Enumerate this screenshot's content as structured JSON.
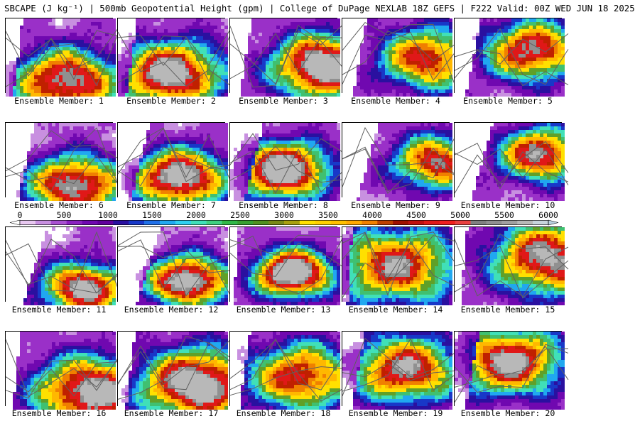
{
  "header": {
    "title": "SBCAPE (J kg⁻¹) | 500mb Geopotential Height (gpm) | College of DuPage NEXLAB 18Z GEFS | F222 Valid: 00Z WED JUN 18 2025"
  },
  "colorbar": {
    "ticks": [
      "0",
      "500",
      "1000",
      "1500",
      "2000",
      "2500",
      "3000",
      "3500",
      "4000",
      "4500",
      "5000",
      "5500",
      "6000"
    ],
    "range": [
      0,
      6000
    ],
    "colors": [
      "#ffffff",
      "#e8c8f0",
      "#c890e0",
      "#a850d0",
      "#8a20c0",
      "#7008b0",
      "#60009c",
      "#2a10a0",
      "#1838c8",
      "#2070e8",
      "#20a8f0",
      "#30d0f0",
      "#40e0b8",
      "#40d080",
      "#30b848",
      "#38a030",
      "#509020",
      "#788818",
      "#a8a010",
      "#ffe000",
      "#ffd000",
      "#ffc000",
      "#ffa800",
      "#f08000",
      "#c04000",
      "#a01000",
      "#c01010",
      "#e01818",
      "#f02020",
      "#e84040",
      "#808080",
      "#909090",
      "#a0a0a0",
      "#b8b8b8",
      "#c8d4dc",
      "#b8d0e0"
    ]
  },
  "members": [
    {
      "label": "Ensemble Member: 1"
    },
    {
      "label": "Ensemble Member: 2"
    },
    {
      "label": "Ensemble Member: 3"
    },
    {
      "label": "Ensemble Member: 4"
    },
    {
      "label": "Ensemble Member: 5"
    },
    {
      "label": "Ensemble Member: 6"
    },
    {
      "label": "Ensemble Member: 7"
    },
    {
      "label": "Ensemble Member: 8"
    },
    {
      "label": "Ensemble Member: 9"
    },
    {
      "label": "Ensemble Member: 10"
    },
    {
      "label": "Ensemble Member: 11"
    },
    {
      "label": "Ensemble Member: 12"
    },
    {
      "label": "Ensemble Member: 13"
    },
    {
      "label": "Ensemble Member: 14"
    },
    {
      "label": "Ensemble Member: 15"
    },
    {
      "label": "Ensemble Member: 16"
    },
    {
      "label": "Ensemble Member: 17"
    },
    {
      "label": "Ensemble Member: 18"
    },
    {
      "label": "Ensemble Member: 19"
    },
    {
      "label": "Ensemble Member: 20"
    }
  ]
}
